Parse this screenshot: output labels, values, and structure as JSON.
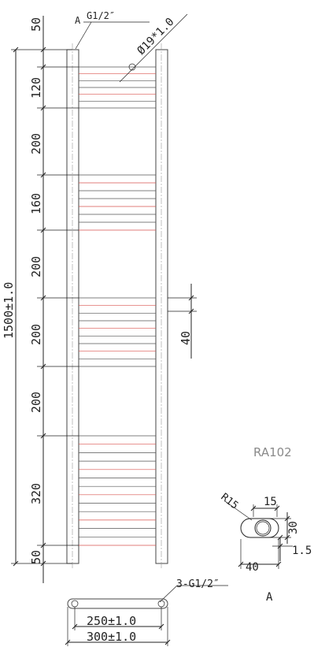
{
  "model_code": "RA102",
  "callouts": {
    "view_marker": "A",
    "top_inlet": "G1/2″",
    "tube_diameter": "Ø19*1.0",
    "bottom_inlets": "3-G1/2″"
  },
  "left_dimensions": {
    "total_height": "1500±1.0",
    "top_offset": "50",
    "segment_1": "120",
    "segment_2": "200",
    "segment_3": "160",
    "segment_4": "200",
    "segment_5": "200",
    "segment_6": "200",
    "segment_7": "320",
    "bottom_offset": "50"
  },
  "right_dimensions": {
    "bar_gap": "40"
  },
  "bottom_dimensions": {
    "centers": "250±1.0",
    "width": "300±1.0"
  },
  "detail_view": {
    "radius": "R15",
    "width": "15",
    "height": "30",
    "wall": "1.5",
    "depth": "40",
    "caption": "A"
  }
}
